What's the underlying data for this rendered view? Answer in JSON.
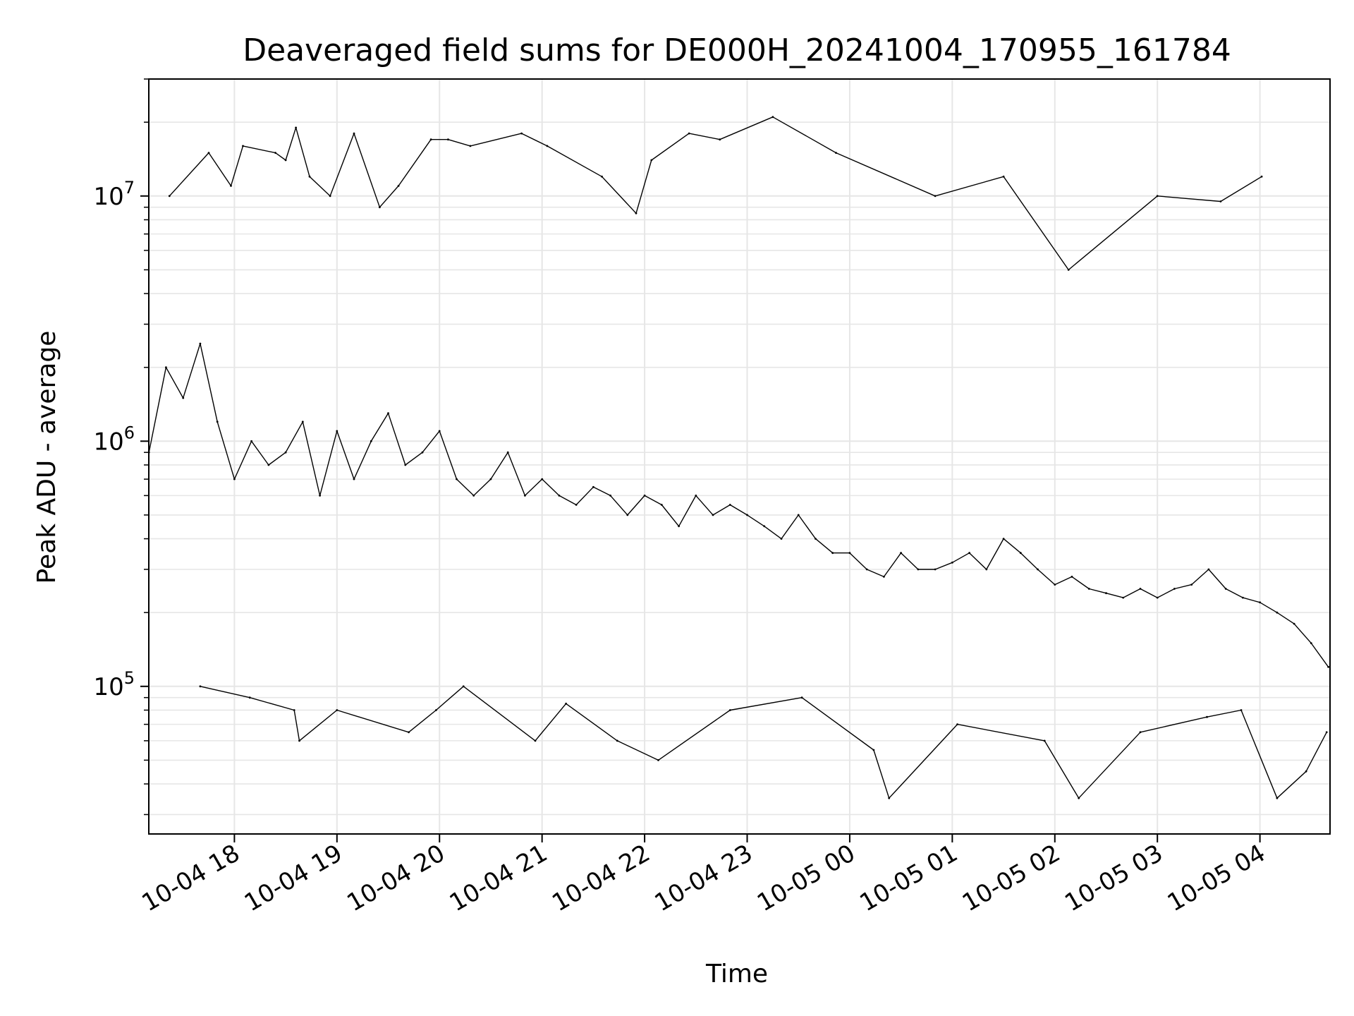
{
  "chart_data": {
    "type": "line",
    "title": "Deaveraged field sums for DE000H_20241004_170955_161784",
    "xlabel": "Time",
    "ylabel": "Peak ADU - average",
    "yscale": "log",
    "grid": true,
    "legend": "none",
    "line_color": "#000000",
    "grid_color": "#e6e6e6",
    "xlim": [
      "2024-10-04 17:09:55",
      "2024-10-05 04:41:00"
    ],
    "ylim": [
      25000,
      30000000
    ],
    "x_ticks": [
      "2024-10-04 18:00",
      "2024-10-04 19:00",
      "2024-10-04 20:00",
      "2024-10-04 21:00",
      "2024-10-04 22:00",
      "2024-10-04 23:00",
      "2024-10-05 00:00",
      "2024-10-05 01:00",
      "2024-10-05 02:00",
      "2024-10-05 03:00",
      "2024-10-05 04:00"
    ],
    "x_tick_labels": [
      "10-04 18",
      "10-04 19",
      "10-04 20",
      "10-04 21",
      "10-04 22",
      "10-04 23",
      "10-05 00",
      "10-05 01",
      "10-05 02",
      "10-05 03",
      "10-05 04"
    ],
    "y_ticks": [
      100000,
      1000000,
      10000000
    ],
    "y_tick_labels": [
      {
        "base": "10",
        "exp": "5"
      },
      {
        "base": "10",
        "exp": "6"
      },
      {
        "base": "10",
        "exp": "7"
      }
    ],
    "series": [
      {
        "x": [
          "2024-10-04 17:10",
          "2024-10-04 17:20",
          "2024-10-04 17:30",
          "2024-10-04 17:40",
          "2024-10-04 17:50",
          "2024-10-04 18:00",
          "2024-10-04 18:10",
          "2024-10-04 18:20",
          "2024-10-04 18:30",
          "2024-10-04 18:40",
          "2024-10-04 18:50",
          "2024-10-04 19:00",
          "2024-10-04 19:10",
          "2024-10-04 19:20",
          "2024-10-04 19:30",
          "2024-10-04 19:40",
          "2024-10-04 19:50",
          "2024-10-04 20:00",
          "2024-10-04 20:10",
          "2024-10-04 20:20",
          "2024-10-04 20:30",
          "2024-10-04 20:40",
          "2024-10-04 20:50",
          "2024-10-04 21:00",
          "2024-10-04 21:10",
          "2024-10-04 21:20",
          "2024-10-04 21:30",
          "2024-10-04 21:40",
          "2024-10-04 21:50",
          "2024-10-04 22:00",
          "2024-10-04 22:10",
          "2024-10-04 22:20",
          "2024-10-04 22:30",
          "2024-10-04 22:40",
          "2024-10-04 22:50",
          "2024-10-04 23:00",
          "2024-10-04 23:10",
          "2024-10-04 23:20",
          "2024-10-04 23:30",
          "2024-10-04 23:40",
          "2024-10-04 23:50",
          "2024-10-05 00:00",
          "2024-10-05 00:10",
          "2024-10-05 00:20",
          "2024-10-05 00:30",
          "2024-10-05 00:40",
          "2024-10-05 00:50",
          "2024-10-05 01:00",
          "2024-10-05 01:10",
          "2024-10-05 01:20",
          "2024-10-05 01:30",
          "2024-10-05 01:40",
          "2024-10-05 01:50",
          "2024-10-05 02:00",
          "2024-10-05 02:10",
          "2024-10-05 02:20",
          "2024-10-05 02:30",
          "2024-10-05 02:40",
          "2024-10-05 02:50",
          "2024-10-05 03:00",
          "2024-10-05 03:10",
          "2024-10-05 03:20",
          "2024-10-05 03:30",
          "2024-10-05 03:40",
          "2024-10-05 03:50",
          "2024-10-05 04:00",
          "2024-10-05 04:10",
          "2024-10-05 04:20",
          "2024-10-05 04:30",
          "2024-10-05 04:40"
        ],
        "y": [
          900000,
          2000000,
          1500000,
          2500000,
          1200000,
          700000,
          1000000,
          800000,
          900000,
          1200000,
          600000,
          1100000,
          700000,
          1000000,
          1300000,
          800000,
          900000,
          1100000,
          700000,
          600000,
          700000,
          900000,
          600000,
          700000,
          600000,
          550000,
          650000,
          600000,
          500000,
          600000,
          550000,
          450000,
          600000,
          500000,
          550000,
          500000,
          450000,
          400000,
          500000,
          400000,
          350000,
          350000,
          300000,
          280000,
          350000,
          300000,
          300000,
          320000,
          350000,
          300000,
          400000,
          350000,
          300000,
          260000,
          280000,
          250000,
          240000,
          230000,
          250000,
          230000,
          250000,
          260000,
          300000,
          250000,
          230000,
          220000,
          200000,
          180000,
          150000,
          120000
        ]
      },
      {
        "x": [
          "2024-10-04 17:22",
          "2024-10-04 17:45",
          "2024-10-04 17:58",
          "2024-10-04 18:05",
          "2024-10-04 18:24",
          "2024-10-04 18:30",
          "2024-10-04 18:36",
          "2024-10-04 18:44",
          "2024-10-04 18:56",
          "2024-10-04 19:10",
          "2024-10-04 19:25",
          "2024-10-04 19:36",
          "2024-10-04 19:55",
          "2024-10-04 20:05",
          "2024-10-04 20:18",
          "2024-10-04 20:48",
          "2024-10-04 21:03",
          "2024-10-04 21:35",
          "2024-10-04 21:55",
          "2024-10-04 22:04",
          "2024-10-04 22:26",
          "2024-10-04 22:44",
          "2024-10-04 23:15",
          "2024-10-04 23:52",
          "2024-10-05 00:50",
          "2024-10-05 01:30",
          "2024-10-05 02:08",
          "2024-10-05 03:00",
          "2024-10-05 03:37",
          "2024-10-05 04:01"
        ],
        "y": [
          10000000,
          15000000,
          11000000,
          16000000,
          15000000,
          14000000,
          19000000,
          12000000,
          10000000,
          18000000,
          9000000,
          11000000,
          17000000,
          17000000,
          16000000,
          18000000,
          16000000,
          12000000,
          8500000,
          14000000,
          18000000,
          17000000,
          21000000,
          15000000,
          10000000,
          12000000,
          5000000,
          10000000,
          9500000,
          12000000
        ]
      },
      {
        "x": [
          "2024-10-04 17:40",
          "2024-10-04 18:09",
          "2024-10-04 18:35",
          "2024-10-04 18:38",
          "2024-10-04 19:00",
          "2024-10-04 19:42",
          "2024-10-04 19:58",
          "2024-10-04 20:14",
          "2024-10-04 20:56",
          "2024-10-04 21:14",
          "2024-10-04 21:44",
          "2024-10-04 22:08",
          "2024-10-04 22:50",
          "2024-10-04 23:32",
          "2024-10-05 00:14",
          "2024-10-05 00:23",
          "2024-10-05 01:03",
          "2024-10-05 01:54",
          "2024-10-05 02:14",
          "2024-10-05 02:50",
          "2024-10-05 03:29",
          "2024-10-05 03:49",
          "2024-10-05 04:10",
          "2024-10-05 04:27",
          "2024-10-05 04:39"
        ],
        "y": [
          100000,
          90000,
          80000,
          60000,
          80000,
          65000,
          80000,
          100000,
          60000,
          85000,
          60000,
          50000,
          80000,
          90000,
          55000,
          35000,
          70000,
          60000,
          35000,
          65000,
          75000,
          80000,
          35000,
          45000,
          65000
        ]
      }
    ]
  }
}
